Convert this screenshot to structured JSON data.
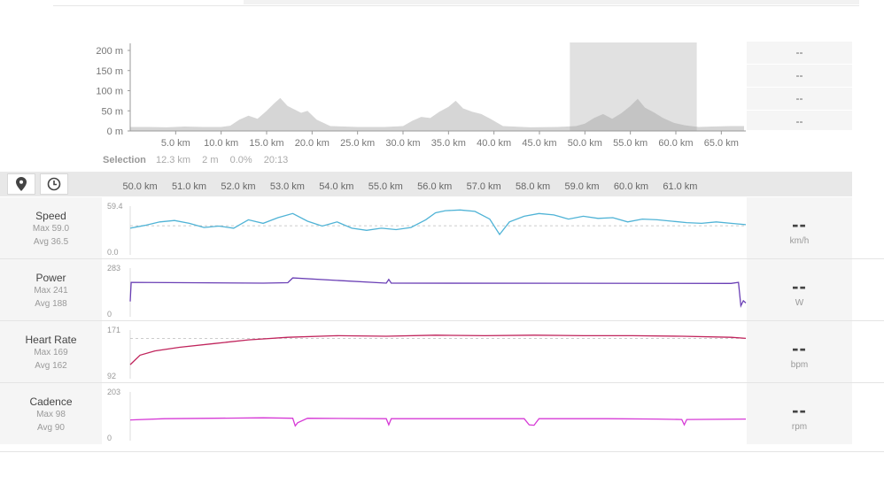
{
  "side_values": [
    "--",
    "--",
    "--",
    "--"
  ],
  "selection": {
    "label": "Selection",
    "distance": "12.3 km",
    "elevation": "2 m",
    "grade": "0.0%",
    "time": "20:13"
  },
  "metrics": [
    {
      "key": "speed",
      "name": "Speed",
      "max": "Max 59.0",
      "avg": "Avg 36.5",
      "top": "59.4",
      "bottom": "0.0",
      "value": "--",
      "unit": "km/h"
    },
    {
      "key": "power",
      "name": "Power",
      "max": "Max 241",
      "avg": "Avg 188",
      "top": "283",
      "bottom": "0",
      "value": "--",
      "unit": "W"
    },
    {
      "key": "hr",
      "name": "Heart Rate",
      "max": "Max 169",
      "avg": "Avg 162",
      "top": "171",
      "bottom": "92",
      "value": "--",
      "unit": "bpm"
    },
    {
      "key": "cadence",
      "name": "Cadence",
      "max": "Max 98",
      "avg": "Avg 90",
      "top": "203",
      "bottom": "0",
      "value": "--",
      "unit": "rpm"
    }
  ],
  "icons": {
    "location": "map-pin-icon",
    "time": "clock-icon"
  },
  "colors": {
    "speed": "#4fb3d6",
    "power": "#6a3fb5",
    "hr": "#c0245c",
    "cadence": "#d63ad6",
    "elevation_fill": "#d6d6d6",
    "selection_box": "#dedede"
  },
  "chart_data": [
    {
      "type": "area",
      "title": "",
      "xlabel": "",
      "ylabel": "",
      "x_ticks": [
        "5.0 km",
        "10.0 km",
        "15.0 km",
        "20.0 km",
        "25.0 km",
        "30.0 km",
        "35.0 km",
        "40.0 km",
        "45.0 km",
        "50.0 km",
        "55.0 km",
        "60.0 km",
        "65.0 km"
      ],
      "y_ticks": [
        "200 m",
        "150 m",
        "100 m",
        "50 m",
        "0 m"
      ],
      "xlim": [
        0,
        67.5
      ],
      "ylim": [
        0,
        200
      ],
      "selection_range_km": [
        50.0,
        62.3
      ],
      "series": [
        {
          "x": [
            0,
            2,
            4,
            6,
            8,
            10,
            11,
            12,
            13,
            14,
            15,
            15.8,
            16.5,
            17.3,
            18,
            18.8,
            19.5,
            20.5,
            22,
            25,
            28,
            30,
            31,
            32,
            33,
            34,
            35,
            35.8,
            36.6,
            37.6,
            38.6,
            39.6,
            41,
            44,
            47,
            49,
            50,
            51,
            52,
            53,
            54,
            55,
            55.8,
            56.6,
            57.6,
            58.6,
            59.8,
            61,
            62.5,
            64,
            66,
            67.5
          ],
          "y": [
            10,
            10,
            9,
            11,
            10,
            10,
            13,
            28,
            38,
            30,
            50,
            68,
            82,
            62,
            54,
            45,
            50,
            28,
            12,
            10,
            10,
            12,
            25,
            35,
            32,
            48,
            60,
            75,
            56,
            48,
            42,
            30,
            12,
            9,
            10,
            12,
            18,
            32,
            42,
            30,
            44,
            62,
            80,
            58,
            46,
            32,
            20,
            14,
            10,
            11,
            12,
            12
          ]
        }
      ]
    },
    {
      "type": "line",
      "xlabel": "",
      "x_ticks": [
        "50.0 km",
        "51.0 km",
        "52.0 km",
        "53.0 km",
        "54.0 km",
        "55.0 km",
        "56.0 km",
        "57.0 km",
        "58.0 km",
        "59.0 km",
        "60.0 km",
        "61.0 km"
      ],
      "xlim": [
        49.8,
        62.3
      ],
      "series": [
        {
          "name": "Speed",
          "ylim": [
            0,
            59.4
          ],
          "avg": 36.5,
          "x": [
            49.8,
            50.1,
            50.4,
            50.7,
            51.0,
            51.3,
            51.6,
            51.9,
            52.2,
            52.5,
            52.8,
            53.1,
            53.4,
            53.7,
            54.0,
            54.3,
            54.6,
            54.9,
            55.2,
            55.5,
            55.8,
            56.0,
            56.2,
            56.5,
            56.8,
            57.1,
            57.3,
            57.5,
            57.8,
            58.1,
            58.4,
            58.7,
            59.0,
            59.3,
            59.6,
            59.9,
            60.2,
            60.5,
            60.8,
            61.1,
            61.4,
            61.7,
            62.0,
            62.3
          ],
          "y": [
            33,
            37,
            42,
            44,
            40,
            34,
            36,
            33,
            45,
            40,
            48,
            54,
            43,
            36,
            42,
            33,
            30,
            33,
            31,
            34,
            45,
            55,
            58,
            59,
            57,
            46,
            24,
            42,
            50,
            54,
            52,
            46,
            50,
            47,
            48,
            42,
            46,
            45,
            43,
            41,
            40,
            42,
            40,
            38
          ]
        }
      ]
    },
    {
      "type": "line",
      "xlim": [
        49.8,
        62.3
      ],
      "series": [
        {
          "name": "Power",
          "ylim": [
            0,
            283
          ],
          "x": [
            49.8,
            49.82,
            52.5,
            53.0,
            53.1,
            55.0,
            55.05,
            55.1,
            62.0,
            62.15,
            62.2,
            62.25,
            62.3
          ],
          "y": [
            80,
            210,
            205,
            208,
            240,
            205,
            230,
            205,
            203,
            210,
            50,
            85,
            70
          ]
        }
      ]
    },
    {
      "type": "line",
      "xlim": [
        49.8,
        62.3
      ],
      "series": [
        {
          "name": "Heart Rate",
          "ylim": [
            92,
            171
          ],
          "avg": 162,
          "x": [
            49.8,
            50.0,
            50.3,
            50.8,
            51.5,
            52.2,
            53.0,
            54.0,
            55.0,
            56.0,
            57.0,
            58.0,
            59.0,
            60.0,
            61.0,
            62.0,
            62.3
          ],
          "y": [
            112,
            130,
            138,
            145,
            152,
            159,
            164,
            167,
            166,
            168,
            167,
            168,
            167,
            167,
            166,
            164,
            162
          ]
        }
      ]
    },
    {
      "type": "line",
      "xlim": [
        49.8,
        62.3
      ],
      "series": [
        {
          "name": "Cadence",
          "ylim": [
            0,
            203
          ],
          "x": [
            49.8,
            50.5,
            51.5,
            52.5,
            53.1,
            53.15,
            53.2,
            53.4,
            55.0,
            55.05,
            55.1,
            57.8,
            57.9,
            58.0,
            58.1,
            59.5,
            60.5,
            61.0,
            61.05,
            61.1,
            62.3
          ],
          "y": [
            84,
            90,
            92,
            94,
            92,
            55,
            70,
            92,
            90,
            60,
            90,
            90,
            60,
            58,
            90,
            90,
            88,
            86,
            60,
            86,
            88
          ]
        }
      ]
    }
  ]
}
